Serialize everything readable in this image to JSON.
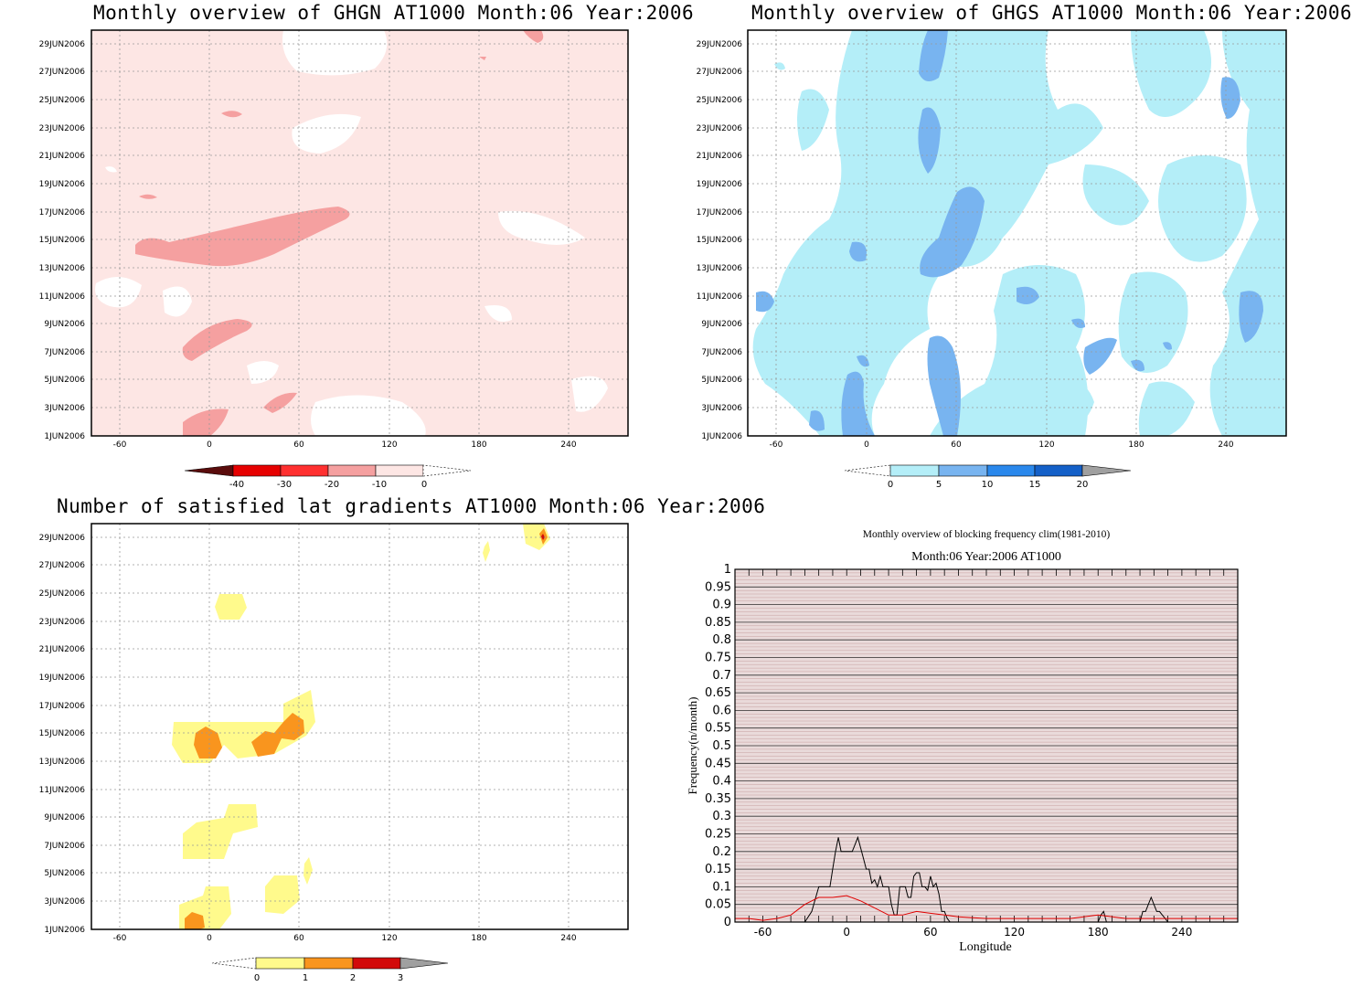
{
  "panels": {
    "ghgn": {
      "title": "Monthly overview of GHGN AT1000 Month:06 Year:2006",
      "dates": [
        "29JUN2006",
        "27JUN2006",
        "25JUN2006",
        "23JUN2006",
        "21JUN2006",
        "19JUN2006",
        "17JUN2006",
        "15JUN2006",
        "13JUN2006",
        "11JUN2006",
        "9JUN2006",
        "7JUN2006",
        "5JUN2006",
        "3JUN2006",
        "1JUN2006"
      ],
      "lon_ticks": [
        "-60",
        "0",
        "60",
        "120",
        "180",
        "240"
      ],
      "colorbar": {
        "labels": [
          "-40",
          "-30",
          "-20",
          "-10",
          "0"
        ],
        "colors": [
          "#5a0c0c",
          "#e60000",
          "#ff3030",
          "#f5a0a0",
          "#fde6e4"
        ]
      }
    },
    "ghgs": {
      "title": "Monthly overview of GHGS AT1000 Month:06 Year:2006",
      "dates": [
        "29JUN2006",
        "27JUN2006",
        "25JUN2006",
        "23JUN2006",
        "21JUN2006",
        "19JUN2006",
        "17JUN2006",
        "15JUN2006",
        "13JUN2006",
        "11JUN2006",
        "9JUN2006",
        "7JUN2006",
        "5JUN2006",
        "3JUN2006",
        "1JUN2006"
      ],
      "lon_ticks": [
        "-60",
        "0",
        "60",
        "120",
        "180",
        "240"
      ],
      "colorbar": {
        "labels": [
          "0",
          "5",
          "10",
          "15",
          "20"
        ],
        "colors": [
          "#b4eef8",
          "#78b4f0",
          "#2a88ec",
          "#1460c8",
          "#a0a0a0"
        ]
      }
    },
    "satisfied": {
      "title": "Number of satisfied lat gradients AT1000 Month:06 Year:2006",
      "dates": [
        "29JUN2006",
        "27JUN2006",
        "25JUN2006",
        "23JUN2006",
        "21JUN2006",
        "19JUN2006",
        "17JUN2006",
        "15JUN2006",
        "13JUN2006",
        "11JUN2006",
        "9JUN2006",
        "7JUN2006",
        "5JUN2006",
        "3JUN2006",
        "1JUN2006"
      ],
      "lon_ticks": [
        "-60",
        "0",
        "60",
        "120",
        "180",
        "240"
      ],
      "colorbar": {
        "labels": [
          "0",
          "1",
          "2",
          "3"
        ],
        "colors": [
          "#fffa8c",
          "#f9951e",
          "#d20a0a",
          "#a0a0a0"
        ]
      }
    },
    "frequency": {
      "title_line1": "Monthly overview of blocking frequency clim(1981-2010)",
      "title_line2": "Month:06 Year:2006  AT1000",
      "xlabel": "Longitude",
      "ylabel": "Frequency(n/month)"
    }
  },
  "chart_data": {
    "type": "line",
    "title": "Monthly overview of blocking frequency clim(1981-2010)",
    "subtitle": "Month:06 Year:2006  AT1000",
    "xlabel": "Longitude",
    "ylabel": "Frequency(n/month)",
    "xlim": [
      -80,
      280
    ],
    "ylim": [
      0,
      1
    ],
    "x_ticks": [
      -60,
      0,
      60,
      120,
      180,
      240
    ],
    "y_ticks": [
      0,
      0.05,
      0.1,
      0.15,
      0.2,
      0.25,
      0.3,
      0.35,
      0.4,
      0.45,
      0.5,
      0.55,
      0.6,
      0.65,
      0.7,
      0.75,
      0.8,
      0.85,
      0.9,
      0.95,
      1
    ],
    "grid": true,
    "series": [
      {
        "color": "#000000",
        "x": [
          -80,
          -30,
          -25,
          -20,
          -16,
          -12,
          -10,
          -8,
          -6,
          -4,
          -2,
          0,
          2,
          4,
          6,
          8,
          10,
          12,
          14,
          16,
          18,
          20,
          22,
          24,
          26,
          28,
          30,
          32,
          34,
          36,
          38,
          40,
          42,
          44,
          46,
          48,
          50,
          52,
          54,
          56,
          58,
          60,
          62,
          64,
          66,
          68,
          70,
          72,
          74,
          180,
          182,
          184,
          186,
          200,
          210,
          212,
          214,
          216,
          218,
          220,
          222,
          224,
          226,
          228,
          230,
          280
        ],
        "y": [
          0,
          0,
          0.03,
          0.1,
          0.1,
          0.1,
          0.15,
          0.2,
          0.24,
          0.2,
          0.2,
          0.2,
          0.2,
          0.2,
          0.22,
          0.24,
          0.21,
          0.18,
          0.15,
          0.15,
          0.11,
          0.12,
          0.1,
          0.13,
          0.1,
          0.1,
          0.1,
          0.05,
          0.02,
          0.02,
          0.1,
          0.1,
          0.1,
          0.07,
          0.07,
          0.13,
          0.14,
          0.14,
          0.1,
          0.1,
          0.09,
          0.13,
          0.1,
          0.11,
          0.08,
          0.03,
          0.03,
          0.01,
          0,
          0,
          0.02,
          0.03,
          0,
          0,
          0,
          0.03,
          0.03,
          0.05,
          0.07,
          0.05,
          0.03,
          0.03,
          0.02,
          0.01,
          0,
          0
        ]
      },
      {
        "color": "#e00000",
        "x": [
          -80,
          -70,
          -60,
          -50,
          -40,
          -30,
          -20,
          -10,
          0,
          10,
          20,
          30,
          40,
          50,
          60,
          70,
          80,
          100,
          120,
          140,
          160,
          180,
          200,
          220,
          240,
          260,
          280
        ],
        "y": [
          0.01,
          0.01,
          0.005,
          0.01,
          0.02,
          0.05,
          0.07,
          0.07,
          0.075,
          0.06,
          0.04,
          0.02,
          0.02,
          0.03,
          0.025,
          0.02,
          0.015,
          0.01,
          0.01,
          0.01,
          0.01,
          0.02,
          0.01,
          0.01,
          0.01,
          0.01,
          0.01
        ]
      }
    ]
  }
}
